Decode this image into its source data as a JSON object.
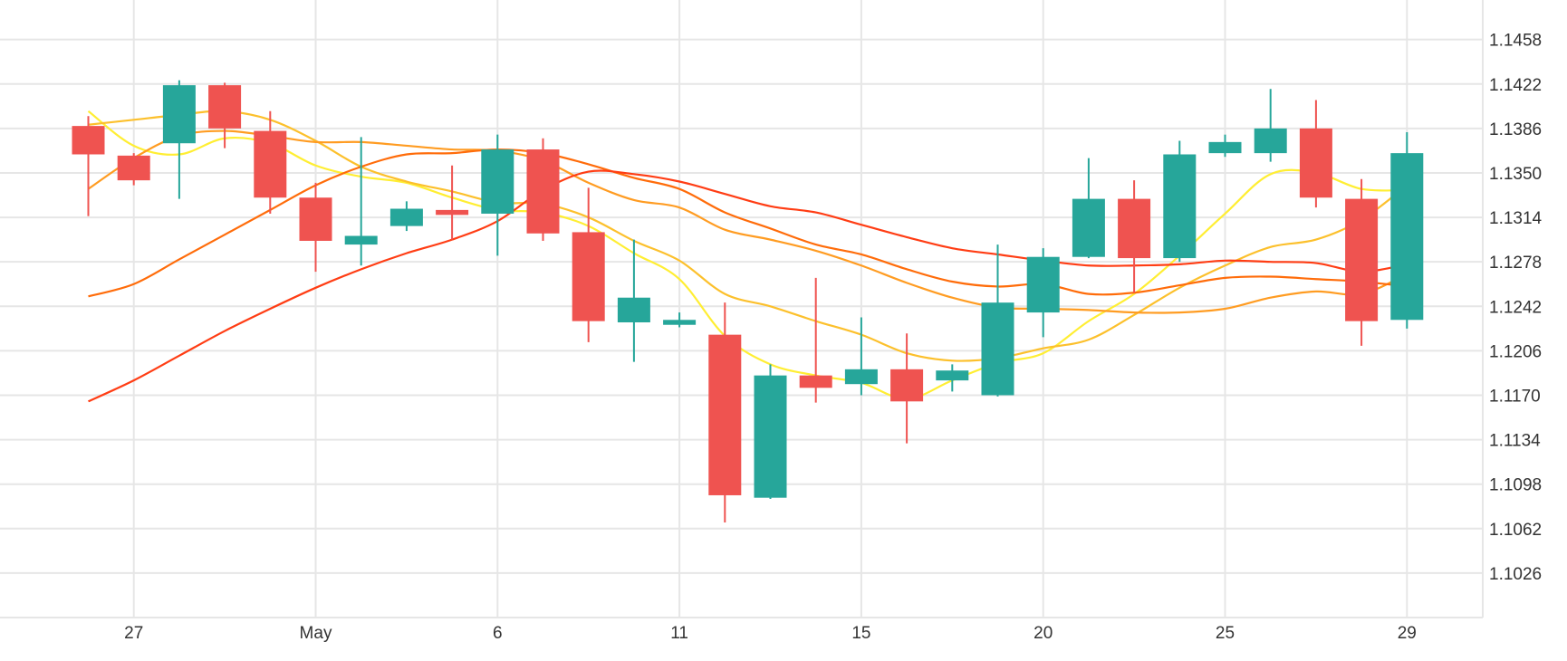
{
  "chart_data": {
    "type": "candlestick",
    "title": "",
    "xlabel": "",
    "ylabel": "",
    "ylim": [
      1.099,
      1.149
    ],
    "grid": true,
    "y_ticks": [
      "1.1026",
      "1.1062",
      "1.1098",
      "1.1134",
      "1.1170",
      "1.1206",
      "1.1242",
      "1.1278",
      "1.1314",
      "1.1350",
      "1.1386",
      "1.1422",
      "1.1458"
    ],
    "x_ticks": [
      {
        "label": "27",
        "index": 1
      },
      {
        "label": "May",
        "index": 5
      },
      {
        "label": "6",
        "index": 9
      },
      {
        "label": "11",
        "index": 13
      },
      {
        "label": "15",
        "index": 17
      },
      {
        "label": "20",
        "index": 21
      },
      {
        "label": "25",
        "index": 25
      },
      {
        "label": "29",
        "index": 29
      }
    ],
    "colors": {
      "up": "#26a69a",
      "down": "#ef5350"
    },
    "candles": [
      {
        "o": 1.1388,
        "h": 1.1396,
        "l": 1.1315,
        "c": 1.1365
      },
      {
        "o": 1.1364,
        "h": 1.1366,
        "l": 1.134,
        "c": 1.1344
      },
      {
        "o": 1.1374,
        "h": 1.1425,
        "l": 1.1329,
        "c": 1.1421
      },
      {
        "o": 1.1421,
        "h": 1.1423,
        "l": 1.137,
        "c": 1.1386
      },
      {
        "o": 1.1384,
        "h": 1.14,
        "l": 1.1317,
        "c": 1.133
      },
      {
        "o": 1.133,
        "h": 1.1342,
        "l": 1.127,
        "c": 1.1295
      },
      {
        "o": 1.1292,
        "h": 1.1379,
        "l": 1.1275,
        "c": 1.1299
      },
      {
        "o": 1.1307,
        "h": 1.1327,
        "l": 1.1303,
        "c": 1.1321
      },
      {
        "o": 1.132,
        "h": 1.1356,
        "l": 1.1296,
        "c": 1.1316
      },
      {
        "o": 1.1317,
        "h": 1.1381,
        "l": 1.1283,
        "c": 1.1369
      },
      {
        "o": 1.1369,
        "h": 1.1378,
        "l": 1.1295,
        "c": 1.1301
      },
      {
        "o": 1.1302,
        "h": 1.1338,
        "l": 1.1213,
        "c": 1.123
      },
      {
        "o": 1.1229,
        "h": 1.1296,
        "l": 1.1197,
        "c": 1.1249
      },
      {
        "o": 1.1227,
        "h": 1.1237,
        "l": 1.1225,
        "c": 1.1231
      },
      {
        "o": 1.1219,
        "h": 1.1245,
        "l": 1.1067,
        "c": 1.1089
      },
      {
        "o": 1.1087,
        "h": 1.1195,
        "l": 1.1086,
        "c": 1.1186
      },
      {
        "o": 1.1186,
        "h": 1.1265,
        "l": 1.1164,
        "c": 1.1176
      },
      {
        "o": 1.1179,
        "h": 1.1233,
        "l": 1.117,
        "c": 1.1191
      },
      {
        "o": 1.1191,
        "h": 1.122,
        "l": 1.1131,
        "c": 1.1165
      },
      {
        "o": 1.1182,
        "h": 1.1195,
        "l": 1.1173,
        "c": 1.119
      },
      {
        "o": 1.117,
        "h": 1.1292,
        "l": 1.1169,
        "c": 1.1245
      },
      {
        "o": 1.1237,
        "h": 1.1289,
        "l": 1.1217,
        "c": 1.1282
      },
      {
        "o": 1.1282,
        "h": 1.1362,
        "l": 1.1281,
        "c": 1.1329
      },
      {
        "o": 1.1329,
        "h": 1.1344,
        "l": 1.1253,
        "c": 1.1281
      },
      {
        "o": 1.1281,
        "h": 1.1376,
        "l": 1.1278,
        "c": 1.1365
      },
      {
        "o": 1.1366,
        "h": 1.1381,
        "l": 1.1363,
        "c": 1.1375
      },
      {
        "o": 1.1366,
        "h": 1.1418,
        "l": 1.1359,
        "c": 1.1386
      },
      {
        "o": 1.1386,
        "h": 1.1409,
        "l": 1.1322,
        "c": 1.133
      },
      {
        "o": 1.1329,
        "h": 1.1345,
        "l": 1.121,
        "c": 1.123
      },
      {
        "o": 1.1231,
        "h": 1.1383,
        "l": 1.1224,
        "c": 1.1366
      }
    ],
    "moving_averages": [
      {
        "color": "#ffee33",
        "values": [
          1.14,
          1.1372,
          1.1365,
          1.1378,
          1.1374,
          1.1356,
          1.1347,
          1.1342,
          1.133,
          1.132,
          1.1318,
          1.1307,
          1.1285,
          1.1264,
          1.1218,
          1.1195,
          1.1186,
          1.118,
          1.1167,
          1.1182,
          1.1196,
          1.1204,
          1.123,
          1.1252,
          1.1283,
          1.1317,
          1.1349,
          1.135,
          1.1337,
          1.1336
        ]
      },
      {
        "color": "#fcc02c",
        "values": [
          1.1389,
          1.1393,
          1.1397,
          1.14,
          1.1393,
          1.1376,
          1.1355,
          1.1343,
          1.1335,
          1.1326,
          1.1325,
          1.1314,
          1.1295,
          1.1279,
          1.1252,
          1.1242,
          1.123,
          1.1219,
          1.1204,
          1.1198,
          1.12,
          1.1208,
          1.1215,
          1.1235,
          1.1257,
          1.1275,
          1.129,
          1.1296,
          1.1312,
          1.134
        ]
      },
      {
        "color": "#ff9c22",
        "values": [
          1.1337,
          1.1362,
          1.138,
          1.1384,
          1.138,
          1.1375,
          1.1375,
          1.1372,
          1.1369,
          1.1368,
          1.136,
          1.1342,
          1.1328,
          1.1322,
          1.1304,
          1.1296,
          1.1287,
          1.1275,
          1.1261,
          1.1249,
          1.1241,
          1.124,
          1.1239,
          1.1237,
          1.1237,
          1.124,
          1.1249,
          1.1254,
          1.1252,
          1.1268
        ]
      },
      {
        "color": "#ff6c0a",
        "values": [
          1.125,
          1.126,
          1.128,
          1.13,
          1.132,
          1.134,
          1.1355,
          1.1365,
          1.1366,
          1.1369,
          1.1366,
          1.1357,
          1.1346,
          1.1337,
          1.1318,
          1.1305,
          1.1292,
          1.1284,
          1.1272,
          1.1262,
          1.1258,
          1.126,
          1.1252,
          1.1253,
          1.1259,
          1.1265,
          1.1266,
          1.1264,
          1.1262,
          1.1258
        ]
      },
      {
        "color": "#ff3d14",
        "values": [
          1.1165,
          1.1182,
          1.1202,
          1.1222,
          1.124,
          1.1257,
          1.1272,
          1.1285,
          1.1296,
          1.1311,
          1.1336,
          1.1351,
          1.1349,
          1.1343,
          1.1333,
          1.1323,
          1.1318,
          1.1308,
          1.1298,
          1.1289,
          1.1284,
          1.1279,
          1.1275,
          1.1275,
          1.1276,
          1.1279,
          1.1278,
          1.1277,
          1.127,
          1.1276
        ]
      }
    ]
  }
}
